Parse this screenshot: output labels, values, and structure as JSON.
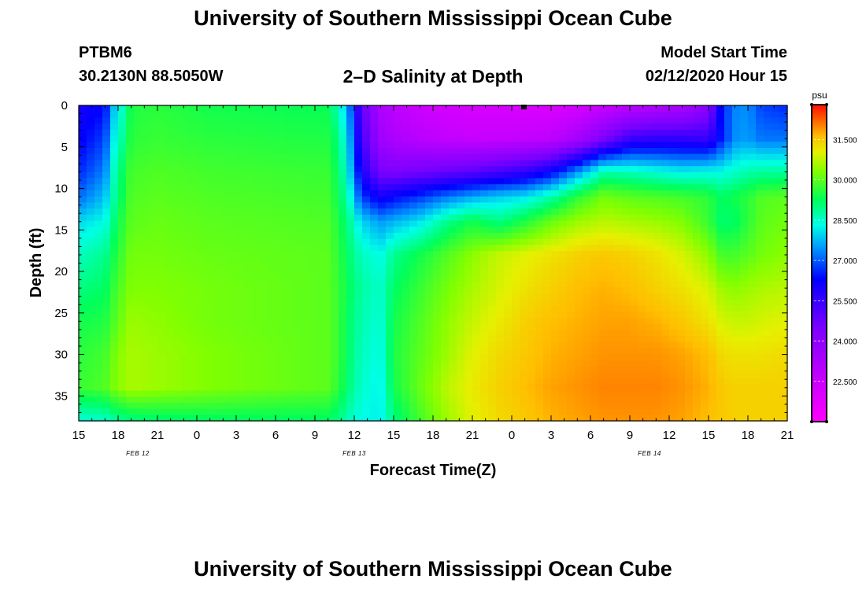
{
  "header": {
    "title": "University of Southern Mississippi Ocean Cube",
    "station_id": "PTBM6",
    "station_coords": "30.2130N 88.5050W",
    "plot_title": "2–D Salinity at Depth",
    "model_start_label": "Model Start Time",
    "model_start_value": "02/12/2020 Hour 15"
  },
  "footer": {
    "title": "University of Southern Mississippi Ocean Cube"
  },
  "chart_data": {
    "type": "heatmap",
    "title": "2–D Salinity at Depth",
    "xlabel": "Forecast Time(Z)",
    "ylabel": "Depth (ft)",
    "x_hours_range": [
      0,
      54
    ],
    "x_tick_step_hours": 3,
    "x_tick_labels": [
      "15",
      "18",
      "21",
      "0",
      "3",
      "6",
      "9",
      "12",
      "15",
      "18",
      "21",
      "0",
      "3",
      "6",
      "9",
      "12",
      "15",
      "18",
      "21"
    ],
    "date_labels": [
      {
        "text": "FEB 12",
        "hour": 4.5
      },
      {
        "text": "FEB 13",
        "hour": 21
      },
      {
        "text": "FEB 14",
        "hour": 43.5
      }
    ],
    "y_range_ft": [
      0,
      38
    ],
    "y_ticks": [
      0,
      5,
      10,
      15,
      20,
      25,
      30,
      35
    ],
    "depth_rows_ft": [
      0,
      4,
      8,
      11,
      14,
      18,
      22,
      26,
      30,
      34,
      38
    ],
    "time_columns_hours": [
      0,
      2,
      2.5,
      3.5,
      4,
      6,
      10,
      19,
      19.8,
      20.5,
      21.5,
      23,
      24,
      26,
      28,
      30,
      32,
      34,
      36,
      38,
      40,
      42,
      44,
      46,
      48,
      49,
      50,
      51,
      52,
      54
    ],
    "salinity_psu": [
      [
        26.0,
        26.3,
        27.6,
        28.7,
        29.5,
        29.6,
        29.4,
        29.3,
        28.6,
        27.6,
        25.0,
        23.2,
        22.8,
        22.4,
        22.2,
        22.1,
        22.1,
        22.0,
        22.0,
        22.2,
        22.5,
        22.8,
        23.0,
        23.2,
        24.0,
        26.5,
        27.3,
        27.4,
        26.8,
        26.6
      ],
      [
        26.2,
        26.8,
        28.0,
        29.0,
        29.6,
        29.7,
        29.6,
        29.5,
        29.0,
        28.0,
        25.4,
        23.6,
        23.2,
        22.9,
        22.7,
        22.6,
        22.6,
        22.7,
        22.8,
        23.4,
        24.4,
        25.5,
        25.6,
        25.6,
        25.5,
        26.5,
        27.4,
        27.5,
        27.2,
        27.2
      ],
      [
        26.6,
        27.3,
        28.4,
        29.4,
        29.8,
        29.9,
        29.8,
        29.7,
        29.2,
        28.3,
        26.0,
        24.5,
        24.4,
        24.6,
        24.8,
        25.0,
        25.3,
        25.6,
        26.2,
        27.4,
        28.7,
        28.6,
        28.4,
        28.2,
        28.3,
        28.3,
        28.5,
        28.7,
        28.8,
        28.8
      ],
      [
        27.1,
        27.8,
        28.6,
        29.5,
        29.9,
        30.0,
        29.9,
        29.8,
        29.3,
        28.7,
        26.8,
        26.0,
        26.3,
        26.7,
        27.2,
        27.6,
        27.9,
        28.1,
        28.7,
        29.6,
        30.2,
        30.0,
        29.9,
        29.8,
        29.6,
        29.2,
        29.4,
        29.6,
        29.9,
        30.0
      ],
      [
        28.0,
        28.3,
        28.9,
        29.7,
        30.0,
        30.1,
        30.0,
        29.9,
        29.5,
        29.0,
        28.0,
        27.5,
        27.7,
        28.1,
        28.9,
        29.4,
        29.0,
        29.5,
        30.1,
        30.5,
        30.7,
        30.6,
        30.5,
        30.3,
        29.7,
        29.1,
        29.2,
        29.6,
        30.0,
        30.2
      ],
      [
        28.6,
        28.9,
        29.3,
        29.9,
        30.2,
        30.2,
        30.1,
        30.0,
        29.6,
        29.2,
        28.6,
        28.3,
        28.9,
        29.4,
        29.9,
        30.4,
        30.8,
        31.0,
        31.2,
        31.4,
        31.5,
        31.4,
        31.2,
        30.9,
        30.4,
        29.8,
        29.8,
        30.0,
        30.2,
        30.4
      ],
      [
        29.0,
        29.2,
        29.6,
        30.1,
        30.3,
        30.3,
        30.2,
        30.0,
        29.7,
        29.3,
        28.8,
        28.5,
        29.2,
        29.7,
        30.2,
        30.6,
        30.9,
        31.2,
        31.4,
        31.6,
        31.7,
        31.6,
        31.4,
        31.2,
        30.9,
        30.5,
        30.4,
        30.5,
        30.6,
        30.7
      ],
      [
        29.4,
        29.5,
        29.8,
        30.3,
        30.5,
        30.4,
        30.2,
        30.0,
        29.7,
        29.2,
        28.7,
        28.4,
        29.4,
        29.9,
        30.4,
        30.8,
        31.1,
        31.4,
        31.6,
        31.7,
        31.8,
        31.8,
        31.7,
        31.5,
        31.2,
        30.9,
        30.8,
        30.8,
        30.9,
        31.0
      ],
      [
        29.6,
        29.8,
        30.1,
        30.5,
        30.6,
        30.5,
        30.3,
        30.0,
        29.7,
        29.2,
        28.6,
        28.3,
        29.5,
        30.0,
        30.5,
        31.0,
        31.3,
        31.5,
        31.7,
        31.8,
        31.9,
        31.9,
        31.9,
        31.8,
        31.6,
        31.3,
        31.2,
        31.2,
        31.2,
        31.3
      ],
      [
        29.7,
        29.9,
        30.2,
        30.5,
        30.6,
        30.5,
        30.3,
        30.0,
        29.6,
        29.1,
        28.5,
        28.2,
        29.4,
        30.1,
        30.7,
        31.1,
        31.4,
        31.6,
        31.8,
        31.9,
        32.0,
        32.0,
        32.0,
        31.9,
        31.7,
        31.5,
        31.4,
        31.4,
        31.4,
        31.4
      ],
      [
        28.4,
        28.5,
        28.7,
        28.9,
        29.0,
        29.1,
        29.2,
        29.2,
        29.0,
        28.6,
        28.3,
        28.2,
        29.0,
        29.8,
        30.5,
        31.0,
        31.3,
        31.5,
        31.7,
        31.8,
        31.9,
        31.9,
        31.9,
        31.8,
        31.6,
        31.5,
        31.4,
        31.4,
        31.4,
        31.4
      ]
    ],
    "colorbar": {
      "label": "psu",
      "min": 21.0,
      "max": 32.8,
      "ticks": [
        "31.500",
        "30.000",
        "28.500",
        "27.000",
        "25.500",
        "24.000",
        "22.500"
      ]
    },
    "colors": {
      "background": "#ffffff",
      "axis": "#000000"
    }
  }
}
